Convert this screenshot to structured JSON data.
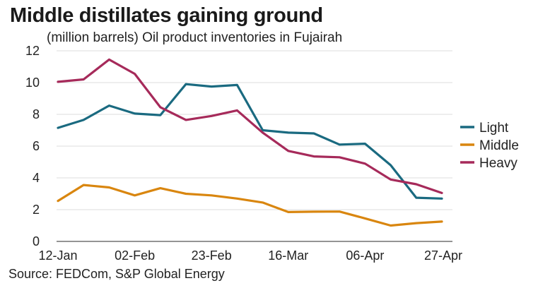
{
  "chart_data": {
    "type": "line",
    "title": "Middle distillates gaining ground",
    "subtitle": "(million barrels) Oil product inventories in Fujairah",
    "source": "Source: FEDCom, S&P Global Energy",
    "xlabel": "",
    "ylabel": "",
    "ylim": [
      0,
      12
    ],
    "yticks": [
      "0",
      "2",
      "4",
      "6",
      "8",
      "10",
      "12"
    ],
    "x_tick_labels": [
      "12-Jan",
      "02-Feb",
      "23-Feb",
      "16-Mar",
      "06-Apr",
      "27-Apr"
    ],
    "x_tick_positions": [
      0,
      3,
      6,
      9,
      12,
      15
    ],
    "x_count": 16,
    "series": [
      {
        "name": "Light",
        "color": "#1a6a80",
        "values": [
          7.15,
          7.65,
          8.55,
          8.05,
          7.95,
          9.9,
          9.75,
          9.85,
          7.0,
          6.85,
          6.8,
          6.1,
          6.15,
          4.8,
          2.75,
          2.7
        ]
      },
      {
        "name": "Middle",
        "color": "#d9860f",
        "values": [
          2.55,
          3.55,
          3.4,
          2.9,
          3.35,
          3.0,
          2.9,
          2.7,
          2.45,
          1.85,
          1.87,
          1.88,
          1.45,
          1.0,
          1.15,
          1.25
        ]
      },
      {
        "name": "Heavy",
        "color": "#a62a5a",
        "values": [
          10.05,
          10.2,
          11.45,
          10.55,
          8.45,
          7.65,
          7.9,
          8.25,
          6.85,
          5.7,
          5.35,
          5.3,
          4.9,
          3.9,
          3.6,
          3.05
        ]
      }
    ],
    "legend_position": "right",
    "grid": true
  }
}
